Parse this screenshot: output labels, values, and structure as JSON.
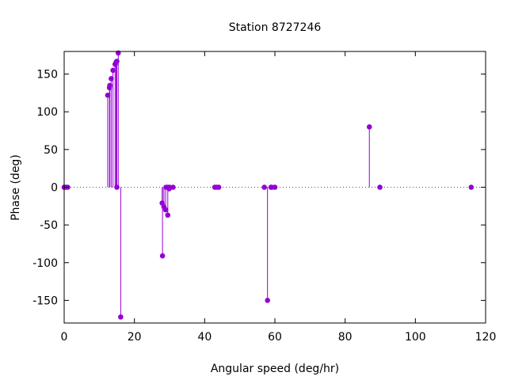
{
  "chart_data": {
    "type": "scatter",
    "style": "impulses-with-points",
    "title": "Station 8727246",
    "xlabel": "Angular speed (deg/hr)",
    "ylabel": "Phase (deg)",
    "xlim": [
      0,
      120
    ],
    "ylim": [
      -180,
      180
    ],
    "x_ticks": [
      0,
      20,
      40,
      60,
      80,
      100,
      120
    ],
    "y_ticks": [
      -150,
      -100,
      -50,
      0,
      50,
      100,
      150
    ],
    "grid": false,
    "zero_line": true,
    "legend": "none",
    "color": "#9400d3",
    "series": [
      {
        "points": [
          [
            0.0,
            0
          ],
          [
            0.5,
            0
          ],
          [
            1.0,
            0
          ],
          [
            12.4,
            122
          ],
          [
            12.9,
            132
          ],
          [
            13.0,
            135
          ],
          [
            13.4,
            144
          ],
          [
            13.9,
            155
          ],
          [
            14.5,
            163
          ],
          [
            14.8,
            166
          ],
          [
            15.0,
            167
          ],
          [
            15.0,
            0
          ],
          [
            15.4,
            178
          ],
          [
            16.1,
            -172
          ],
          [
            27.9,
            -21
          ],
          [
            28.0,
            -91
          ],
          [
            28.4,
            -26
          ],
          [
            28.9,
            -30
          ],
          [
            29.0,
            0
          ],
          [
            29.5,
            -37
          ],
          [
            29.5,
            0
          ],
          [
            29.9,
            -2
          ],
          [
            30.0,
            0
          ],
          [
            31.0,
            0
          ],
          [
            42.9,
            0
          ],
          [
            43.5,
            0
          ],
          [
            44.0,
            0
          ],
          [
            57.0,
            0
          ],
          [
            57.9,
            -150
          ],
          [
            58.9,
            0
          ],
          [
            59.1,
            0
          ],
          [
            60.0,
            0
          ],
          [
            86.9,
            80
          ],
          [
            89.9,
            0
          ],
          [
            115.9,
            0
          ]
        ]
      }
    ]
  }
}
